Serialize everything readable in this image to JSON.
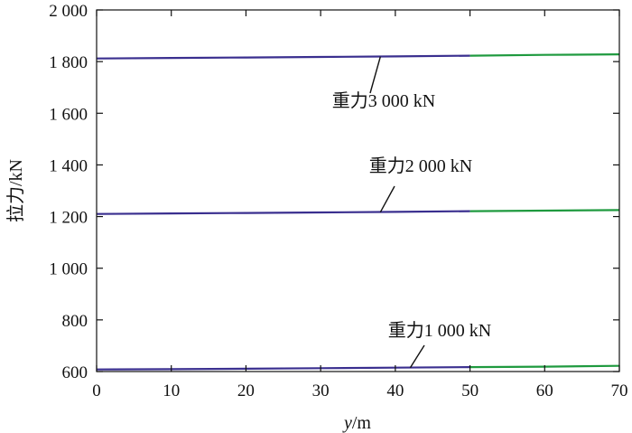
{
  "chart_data": {
    "type": "line",
    "xlabel_var": "y",
    "xlabel_unit": "/m",
    "ylabel": "拉力/kN",
    "xlim": [
      0,
      70
    ],
    "ylim": [
      600,
      2000
    ],
    "x_ticks": [
      0,
      10,
      20,
      30,
      40,
      50,
      60,
      70
    ],
    "y_ticks": [
      600,
      800,
      1000,
      1200,
      1400,
      1600,
      1800,
      2000
    ],
    "y_tick_labels": [
      "600",
      "800",
      "1 000",
      "1 200",
      "1 400",
      "1 600",
      "1 800",
      "2 000"
    ],
    "grid": false,
    "colors": {
      "left_segment": "#3a2f8f",
      "right_segment": "#1f9a3f",
      "axis": "#111111"
    },
    "series": [
      {
        "x": [
          0,
          10,
          20,
          30,
          40,
          50,
          60,
          70
        ],
        "values": [
          1812,
          1814,
          1816,
          1818,
          1820,
          1823,
          1826,
          1828
        ]
      },
      {
        "x": [
          0,
          10,
          20,
          30,
          40,
          50,
          60,
          70
        ],
        "values": [
          1210,
          1212,
          1214,
          1216,
          1218,
          1221,
          1223,
          1225
        ]
      },
      {
        "x": [
          0,
          10,
          20,
          30,
          40,
          50,
          60,
          70
        ],
        "values": [
          608,
          609,
          611,
          613,
          615,
          617,
          619,
          622
        ]
      }
    ],
    "annotations": [
      {
        "text": "重力3 000 kN",
        "target_x": 38,
        "target_y": 1819
      },
      {
        "text": "重力2 000 kN",
        "target_x": 38,
        "target_y": 1217
      },
      {
        "text": "重力1 000 kN",
        "target_x": 42,
        "target_y": 615
      }
    ]
  }
}
